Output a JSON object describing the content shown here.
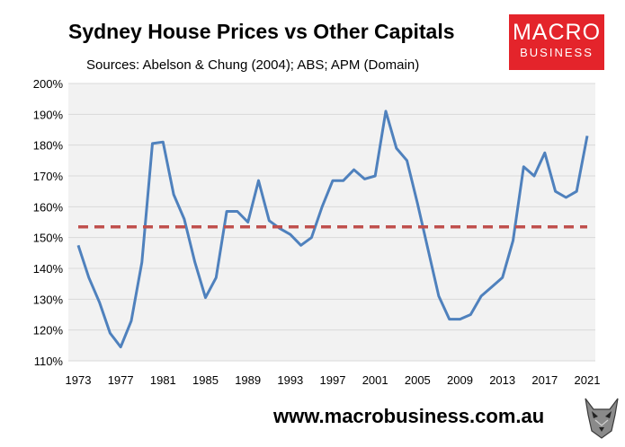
{
  "header": {
    "title": "Sydney House Prices vs Other Capitals",
    "subtitle": "Sources: Abelson & Chung (2004); ABS; APM (Domain)"
  },
  "logo": {
    "line1": "MACRO",
    "line2": "BUSINESS"
  },
  "footer": {
    "url": "www.macrobusiness.com.au"
  },
  "colors": {
    "series": "#4f81bd",
    "average": "#c0504d",
    "plot_bg": "#f2f2f2",
    "grid": "#d9d9d9",
    "brand": "#e4242b"
  },
  "chart_data": {
    "type": "line",
    "title": "Sydney House Prices vs Other Capitals",
    "xlabel": "",
    "ylabel": "",
    "ylim": [
      110,
      200
    ],
    "y_ticks": [
      110,
      120,
      130,
      140,
      150,
      160,
      170,
      180,
      190,
      200
    ],
    "y_tick_labels": [
      "110%",
      "120%",
      "130%",
      "140%",
      "150%",
      "160%",
      "170%",
      "180%",
      "190%",
      "200%"
    ],
    "x_range": [
      1973,
      2021
    ],
    "x_tick_labels": [
      "1973",
      "1977",
      "1981",
      "1985",
      "1989",
      "1993",
      "1997",
      "2001",
      "2005",
      "2009",
      "2013",
      "2017",
      "2021"
    ],
    "grid": "horizontal",
    "legend": "none",
    "series": [
      {
        "name": "Sydney house prices vs other capitals",
        "style": "solid",
        "x": [
          1973,
          1974,
          1975,
          1976,
          1977,
          1978,
          1979,
          1980,
          1981,
          1982,
          1983,
          1984,
          1985,
          1986,
          1987,
          1988,
          1989,
          1990,
          1991,
          1992,
          1993,
          1994,
          1995,
          1996,
          1997,
          1998,
          1999,
          2000,
          2001,
          2002,
          2003,
          2004,
          2005,
          2006,
          2007,
          2008,
          2009,
          2010,
          2011,
          2012,
          2013,
          2014,
          2015,
          2016,
          2017,
          2018,
          2019,
          2020,
          2021
        ],
        "values": [
          147.5,
          137,
          129,
          119,
          114.5,
          123,
          142,
          180.5,
          181,
          164,
          156,
          142,
          130.5,
          137,
          158.5,
          158.5,
          155,
          168.5,
          155.5,
          153,
          151,
          147.5,
          150,
          160,
          168.5,
          168.5,
          172,
          169,
          170,
          191,
          179,
          175,
          161,
          146,
          131,
          123.5,
          123.5,
          125,
          131,
          134,
          137,
          149,
          173,
          170,
          177.5,
          165,
          163,
          165,
          183
        ]
      },
      {
        "name": "Average",
        "style": "dashed",
        "x": [
          1973,
          2021
        ],
        "values": [
          153.5,
          153.5
        ]
      }
    ]
  }
}
